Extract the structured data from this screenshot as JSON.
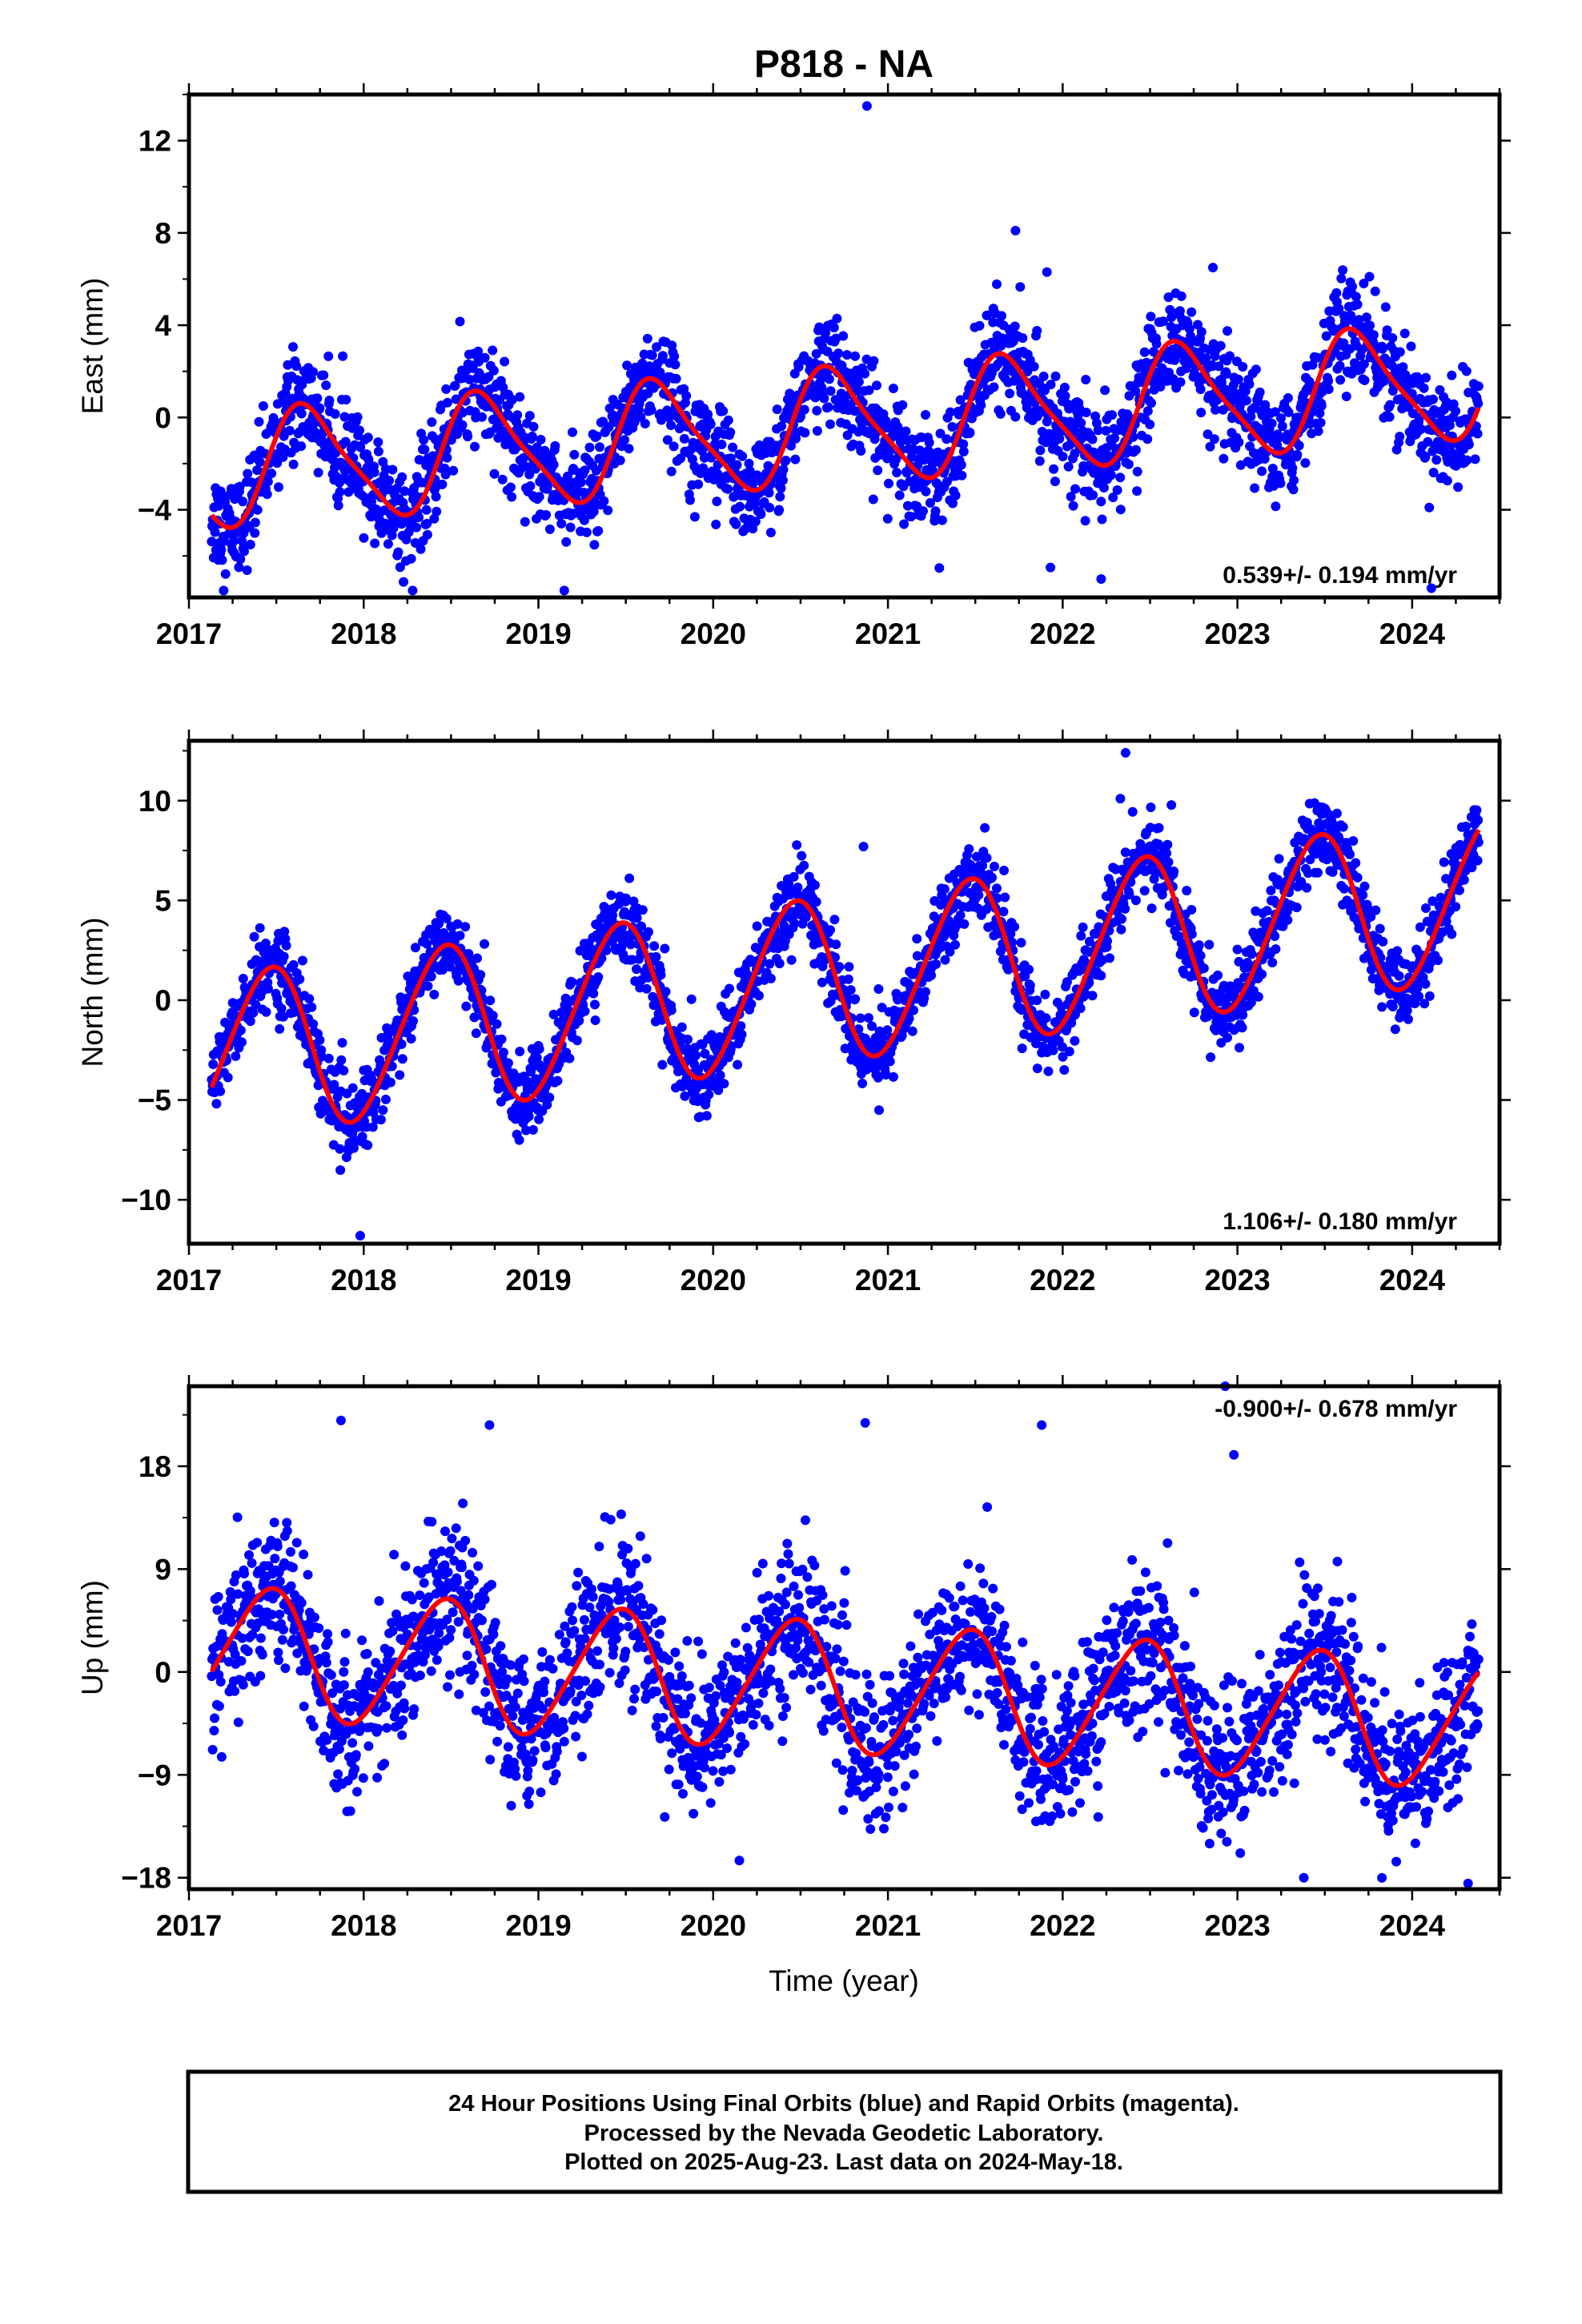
{
  "title": "P818 - NA",
  "xlabel": "Time (year)",
  "footer": [
    "24 Hour Positions Using Final Orbits (blue) and Rapid Orbits (magenta).",
    "Processed by the Nevada Geodetic Laboratory.",
    "Plotted on 2025-Aug-23. Last data on 2024-May-18."
  ],
  "colors": {
    "final_orbits": "#0000ff",
    "rapid_orbits": "#ff00ff",
    "model": "#ff0000",
    "frame": "#000000"
  },
  "chart_data": [
    {
      "type": "scatter",
      "component": "east",
      "ylabel": "East (mm)",
      "rate": "0.539+/- 0.194 mm/yr",
      "rate_position": "bottom-right",
      "xlim": [
        2017.0,
        2024.5
      ],
      "ylim": [
        -7.8,
        14.0
      ],
      "xticks": [
        "2017",
        "2018",
        "2019",
        "2020",
        "2021",
        "2022",
        "2023",
        "2024"
      ],
      "yticks": [
        "-4",
        "0",
        "4",
        "8",
        "12"
      ],
      "ytick_values": [
        -4,
        0,
        4,
        8,
        12
      ],
      "model": {
        "color": "#ff0000",
        "intercept_2017": -2.4,
        "rate_mm_yr": 0.539,
        "annual_sin": -2.2,
        "annual_cos": -1.0,
        "semiannual_sin": 0.4,
        "semiannual_cos": 0.3
      },
      "series": [
        {
          "name": "Final orbits",
          "color": "#0000ff",
          "x_start": 2017.13,
          "x_end": 2024.38,
          "scatter_mm": 1.1
        }
      ],
      "outliers": [
        [
          2020.88,
          13.5
        ],
        [
          2021.73,
          8.1
        ],
        [
          2021.91,
          6.3
        ],
        [
          2021.93,
          -6.5
        ],
        [
          2022.22,
          -7.0
        ],
        [
          2024.11,
          -7.4
        ],
        [
          2022.86,
          6.5
        ]
      ]
    },
    {
      "type": "scatter",
      "component": "north",
      "ylabel": "North (mm)",
      "rate": "1.106+/- 0.180 mm/yr",
      "rate_position": "bottom-right",
      "xlim": [
        2017.0,
        2024.5
      ],
      "ylim": [
        -12.2,
        13.0
      ],
      "xticks": [
        "2017",
        "2018",
        "2019",
        "2020",
        "2021",
        "2022",
        "2023",
        "2024"
      ],
      "yticks": [
        "-10",
        "-5",
        "0",
        "5",
        "10"
      ],
      "ytick_values": [
        -10,
        -5,
        0,
        5,
        10
      ],
      "model": {
        "color": "#ff0000",
        "intercept_2017": -3.0,
        "rate_mm_yr": 1.106,
        "annual_sin": 1.2,
        "annual_cos": -3.9,
        "semiannual_sin": 0.3,
        "semiannual_cos": 0.2
      },
      "series": [
        {
          "name": "Final orbits",
          "color": "#0000ff",
          "x_start": 2017.13,
          "x_end": 2024.38,
          "scatter_mm": 1.0
        }
      ],
      "outliers": [
        [
          2022.36,
          12.4
        ],
        [
          2022.33,
          10.1
        ],
        [
          2020.86,
          7.7
        ],
        [
          2017.98,
          -11.8
        ]
      ]
    },
    {
      "type": "scatter",
      "component": "up",
      "ylabel": "Up (mm)",
      "rate": "-0.900+/- 0.678 mm/yr",
      "rate_position": "top-right",
      "xlim": [
        2017.0,
        2024.5
      ],
      "ylim": [
        -19.0,
        25.0
      ],
      "xticks": [
        "2017",
        "2018",
        "2019",
        "2020",
        "2021",
        "2022",
        "2023",
        "2024"
      ],
      "yticks": [
        "-18",
        "-9",
        "0",
        "9",
        "18"
      ],
      "ytick_values": [
        -18,
        -9,
        0,
        9,
        18
      ],
      "model": {
        "color": "#ff0000",
        "intercept_2017": 2.0,
        "rate_mm_yr": -0.9,
        "annual_sin": 1.8,
        "annual_cos": -5.3,
        "semiannual_sin": 0.5,
        "semiannual_cos": 0.4
      },
      "series": [
        {
          "name": "Final orbits",
          "color": "#0000ff",
          "x_start": 2017.13,
          "x_end": 2024.38,
          "scatter_mm": 3.3
        }
      ],
      "outliers": [
        [
          2022.93,
          25.0
        ],
        [
          2017.87,
          22.0
        ],
        [
          2018.72,
          21.6
        ],
        [
          2020.87,
          21.8
        ],
        [
          2021.88,
          21.6
        ],
        [
          2022.98,
          19.0
        ],
        [
          2020.15,
          -16.5
        ],
        [
          2023.38,
          -18.0
        ],
        [
          2024.32,
          -18.5
        ]
      ]
    }
  ]
}
